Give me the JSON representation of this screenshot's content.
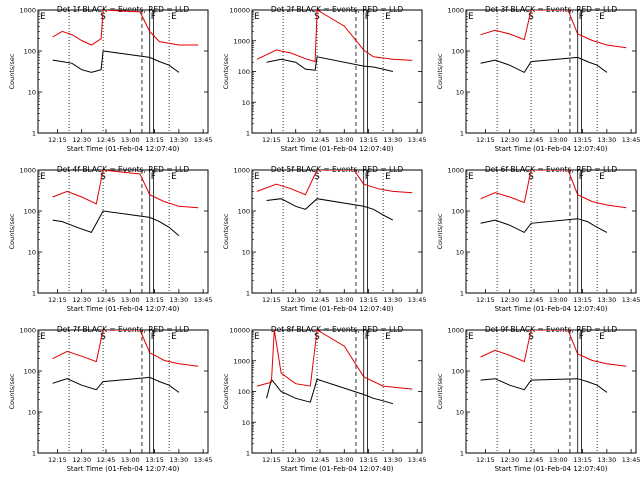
{
  "figure": {
    "ylabel": "Counts/sec",
    "xlabel": "Start Time (01-Feb-04 12:07:40)",
    "xticks": [
      "12:15",
      "12:30",
      "12:45",
      "13:00",
      "13:15",
      "13:30",
      "13:45"
    ],
    "yticks": [
      "1",
      "10",
      "100",
      "1000",
      "10000"
    ],
    "colors": {
      "events": "#000000",
      "lld": "#e00000"
    }
  },
  "chart_data": [
    {
      "type": "line",
      "title": "Det 1f BLACK = Events, RED = LLD",
      "ytop": 1000,
      "markers": {
        "E_left": "E",
        "S": "S",
        "F": "F",
        "E_right": "E"
      },
      "series": [
        {
          "name": "Events",
          "x": [
            12.2,
            12.3,
            12.4,
            12.5,
            12.6,
            12.7,
            12.72,
            13.2,
            13.3,
            13.4,
            13.5
          ],
          "y": [
            60,
            55,
            50,
            35,
            30,
            35,
            100,
            70,
            55,
            45,
            30
          ]
        },
        {
          "name": "LLD",
          "x": [
            12.2,
            12.3,
            12.4,
            12.5,
            12.6,
            12.7,
            12.72,
            13.1,
            13.2,
            13.3,
            13.5,
            13.7
          ],
          "y": [
            220,
            300,
            250,
            180,
            140,
            200,
            1000,
            900,
            300,
            170,
            140,
            140
          ]
        }
      ]
    },
    {
      "type": "line",
      "title": "Det 2f BLACK = Events, RED = LLD",
      "ytop": 10000,
      "markers": {
        "E_left": "E",
        "S": "S",
        "F": "F",
        "E_right": "E"
      },
      "series": [
        {
          "name": "Events",
          "x": [
            12.2,
            12.35,
            12.5,
            12.6,
            12.7,
            12.72,
            13.2,
            13.3,
            13.4,
            13.5
          ],
          "y": [
            200,
            250,
            200,
            120,
            110,
            300,
            150,
            140,
            120,
            100
          ]
        },
        {
          "name": "LLD",
          "x": [
            12.1,
            12.3,
            12.45,
            12.6,
            12.7,
            12.72,
            13.0,
            13.2,
            13.3,
            13.5,
            13.7
          ],
          "y": [
            250,
            500,
            400,
            260,
            210,
            10000,
            3000,
            500,
            300,
            250,
            230
          ]
        }
      ]
    },
    {
      "type": "line",
      "title": "Det 3f BLACK = Events, RED = LLD",
      "ytop": 1000,
      "markers": {
        "E_left": "E",
        "S": "S",
        "F": "F",
        "E_right": "E"
      },
      "series": [
        {
          "name": "Events",
          "x": [
            12.2,
            12.35,
            12.5,
            12.65,
            12.72,
            13.2,
            13.3,
            13.4,
            13.5
          ],
          "y": [
            50,
            60,
            45,
            30,
            55,
            70,
            55,
            45,
            30
          ]
        },
        {
          "name": "LLD",
          "x": [
            12.2,
            12.35,
            12.5,
            12.65,
            12.72,
            13.1,
            13.2,
            13.35,
            13.5,
            13.7
          ],
          "y": [
            250,
            320,
            260,
            190,
            1000,
            1000,
            260,
            180,
            140,
            120
          ]
        }
      ]
    },
    {
      "type": "line",
      "title": "Det 4f BLACK = Events, RED = LLD",
      "ytop": 1000,
      "markers": {
        "E_left": "E",
        "S": "S",
        "F": "F",
        "E_right": "E"
      },
      "series": [
        {
          "name": "Events",
          "x": [
            12.2,
            12.3,
            12.45,
            12.6,
            12.72,
            13.2,
            13.3,
            13.4,
            13.5
          ],
          "y": [
            60,
            55,
            40,
            30,
            100,
            70,
            55,
            40,
            25
          ]
        },
        {
          "name": "LLD",
          "x": [
            12.2,
            12.35,
            12.5,
            12.65,
            12.72,
            13.1,
            13.2,
            13.35,
            13.5,
            13.7
          ],
          "y": [
            220,
            300,
            220,
            150,
            1000,
            800,
            250,
            170,
            130,
            120
          ]
        }
      ]
    },
    {
      "type": "line",
      "title": "Det 5f BLACK = Events, RED = LLD",
      "ytop": 1000,
      "markers": {
        "E_left": "E",
        "S": "S",
        "F": "F",
        "E_right": "E"
      },
      "series": [
        {
          "name": "Events",
          "x": [
            12.2,
            12.35,
            12.5,
            12.6,
            12.72,
            13.2,
            13.3,
            13.4,
            13.5
          ],
          "y": [
            180,
            200,
            130,
            110,
            200,
            130,
            110,
            80,
            60
          ]
        },
        {
          "name": "LLD",
          "x": [
            12.1,
            12.3,
            12.45,
            12.6,
            12.72,
            13.1,
            13.2,
            13.35,
            13.5,
            13.7
          ],
          "y": [
            300,
            450,
            350,
            250,
            1000,
            1000,
            450,
            350,
            300,
            280
          ]
        }
      ]
    },
    {
      "type": "line",
      "title": "Det 6f BLACK = Events, RED = LLD",
      "ytop": 1000,
      "markers": {
        "E_left": "E",
        "S": "S",
        "F": "F",
        "E_right": "E"
      },
      "series": [
        {
          "name": "Events",
          "x": [
            12.2,
            12.35,
            12.5,
            12.65,
            12.72,
            13.2,
            13.3,
            13.4,
            13.5
          ],
          "y": [
            50,
            60,
            45,
            30,
            50,
            65,
            55,
            40,
            30
          ]
        },
        {
          "name": "LLD",
          "x": [
            12.2,
            12.35,
            12.5,
            12.65,
            12.72,
            13.1,
            13.2,
            13.35,
            13.5,
            13.7
          ],
          "y": [
            200,
            280,
            220,
            160,
            1000,
            1000,
            250,
            170,
            140,
            120
          ]
        }
      ]
    },
    {
      "type": "line",
      "title": "Det 7f BLACK = Events, RED = LLD",
      "ytop": 1000,
      "markers": {
        "E_left": "E",
        "S": "S",
        "F": "F",
        "E_right": "E"
      },
      "series": [
        {
          "name": "Events",
          "x": [
            12.2,
            12.35,
            12.5,
            12.65,
            12.72,
            13.2,
            13.3,
            13.4,
            13.5
          ],
          "y": [
            50,
            65,
            45,
            35,
            55,
            70,
            55,
            45,
            30
          ]
        },
        {
          "name": "LLD",
          "x": [
            12.2,
            12.35,
            12.5,
            12.65,
            12.72,
            13.1,
            13.2,
            13.35,
            13.5,
            13.7
          ],
          "y": [
            200,
            300,
            230,
            170,
            1000,
            1000,
            280,
            180,
            150,
            130
          ]
        }
      ]
    },
    {
      "type": "line",
      "title": "Det 8f BLACK = Events, RED = LLD",
      "ytop": 10000,
      "markers": {
        "E_left": "E",
        "S": "S",
        "F": "F",
        "E_right": "E"
      },
      "series": [
        {
          "name": "Events",
          "x": [
            12.2,
            12.25,
            12.35,
            12.5,
            12.65,
            12.72,
            13.2,
            13.3,
            13.4,
            13.5
          ],
          "y": [
            60,
            250,
            100,
            60,
            45,
            250,
            80,
            60,
            50,
            40
          ]
        },
        {
          "name": "LLD",
          "x": [
            12.1,
            12.25,
            12.28,
            12.35,
            12.5,
            12.65,
            12.72,
            13.0,
            13.2,
            13.4,
            13.7
          ],
          "y": [
            150,
            200,
            10000,
            400,
            180,
            150,
            10000,
            3000,
            300,
            150,
            120
          ]
        }
      ]
    },
    {
      "type": "line",
      "title": "Det 9f BLACK = Events, RED = LLD",
      "ytop": 1000,
      "markers": {
        "E_left": "E",
        "S": "S",
        "F": "F",
        "E_right": "E"
      },
      "series": [
        {
          "name": "Events",
          "x": [
            12.2,
            12.35,
            12.5,
            12.65,
            12.72,
            13.2,
            13.3,
            13.4,
            13.5
          ],
          "y": [
            60,
            65,
            45,
            35,
            60,
            65,
            55,
            45,
            30
          ]
        },
        {
          "name": "LLD",
          "x": [
            12.2,
            12.35,
            12.5,
            12.65,
            12.72,
            13.1,
            13.2,
            13.35,
            13.5,
            13.7
          ],
          "y": [
            220,
            320,
            240,
            170,
            1000,
            1000,
            260,
            180,
            150,
            130
          ]
        }
      ]
    }
  ]
}
